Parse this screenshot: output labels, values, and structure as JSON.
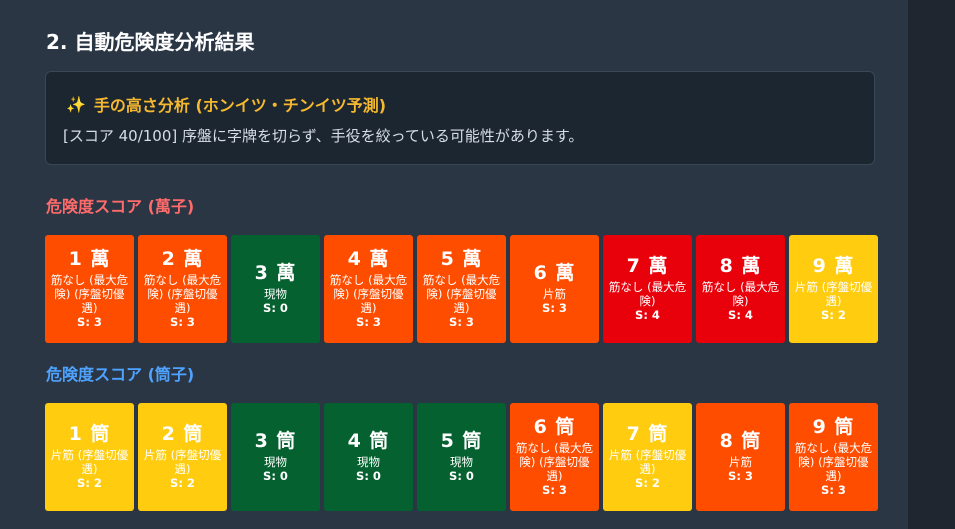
{
  "heading": "2. 自動危険度分析結果",
  "analysis": {
    "icon": "sparkles-icon",
    "title": "手の高さ分析 (ホンイツ・チンイツ予測)",
    "text": "[スコア 40/100] 序盤に字牌を切らず、手役を絞っている可能性があります。"
  },
  "colors": {
    "red": "#e8000b",
    "orange": "#ff4d00",
    "yellow": "#ffcc0f",
    "green": "#05612f",
    "manzu_label": "#ff6b6b",
    "pinzu_label": "#4da3ff"
  },
  "manzu": {
    "label": "危険度スコア (萬子)",
    "tiles": [
      {
        "name": "1 萬",
        "note": "筋なし (最大危険) (序盤切優遇)",
        "score": "S: 3",
        "color": "orange"
      },
      {
        "name": "2 萬",
        "note": "筋なし (最大危険) (序盤切優遇)",
        "score": "S: 3",
        "color": "orange"
      },
      {
        "name": "3 萬",
        "note": "現物",
        "score": "S: 0",
        "color": "green"
      },
      {
        "name": "4 萬",
        "note": "筋なし (最大危険) (序盤切優遇)",
        "score": "S: 3",
        "color": "orange"
      },
      {
        "name": "5 萬",
        "note": "筋なし (最大危険) (序盤切優遇)",
        "score": "S: 3",
        "color": "orange"
      },
      {
        "name": "6 萬",
        "note": "片筋",
        "score": "S: 3",
        "color": "orange"
      },
      {
        "name": "7 萬",
        "note": "筋なし (最大危険)",
        "score": "S: 4",
        "color": "red"
      },
      {
        "name": "8 萬",
        "note": "筋なし (最大危険)",
        "score": "S: 4",
        "color": "red"
      },
      {
        "name": "9 萬",
        "note": "片筋 (序盤切優遇)",
        "score": "S: 2",
        "color": "yellow"
      }
    ]
  },
  "pinzu": {
    "label": "危険度スコア (筒子)",
    "tiles": [
      {
        "name": "1 筒",
        "note": "片筋 (序盤切優遇)",
        "score": "S: 2",
        "color": "yellow"
      },
      {
        "name": "2 筒",
        "note": "片筋 (序盤切優遇)",
        "score": "S: 2",
        "color": "yellow"
      },
      {
        "name": "3 筒",
        "note": "現物",
        "score": "S: 0",
        "color": "green"
      },
      {
        "name": "4 筒",
        "note": "現物",
        "score": "S: 0",
        "color": "green"
      },
      {
        "name": "5 筒",
        "note": "現物",
        "score": "S: 0",
        "color": "green"
      },
      {
        "name": "6 筒",
        "note": "筋なし (最大危険) (序盤切優遇)",
        "score": "S: 3",
        "color": "orange"
      },
      {
        "name": "7 筒",
        "note": "片筋 (序盤切優遇)",
        "score": "S: 2",
        "color": "yellow"
      },
      {
        "name": "8 筒",
        "note": "片筋",
        "score": "S: 3",
        "color": "orange"
      },
      {
        "name": "9 筒",
        "note": "筋なし (最大危険) (序盤切優遇)",
        "score": "S: 3",
        "color": "orange"
      }
    ]
  }
}
